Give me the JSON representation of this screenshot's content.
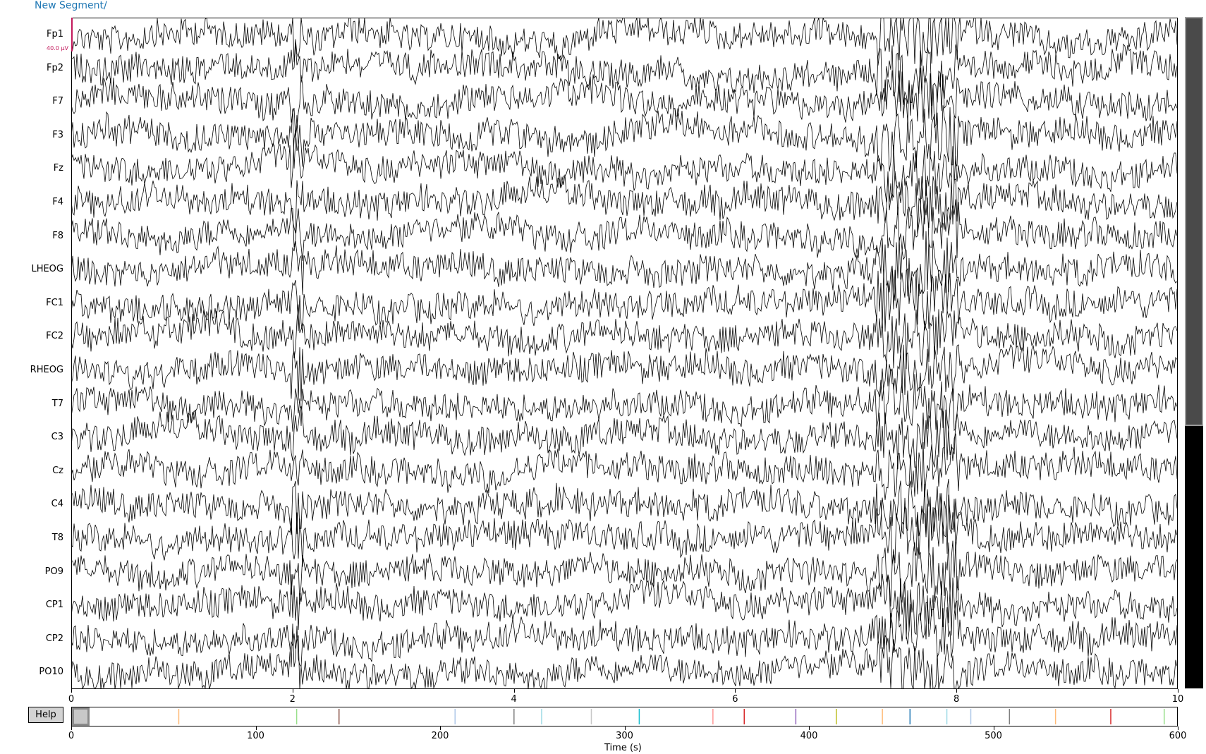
{
  "segment_label": "New Segment/",
  "channels": [
    "Fp1",
    "Fp2",
    "F7",
    "F3",
    "Fz",
    "F4",
    "F8",
    "LHEOG",
    "FC1",
    "FC2",
    "RHEOG",
    "T7",
    "C3",
    "Cz",
    "C4",
    "T8",
    "PO9",
    "CP1",
    "CP2",
    "PO10"
  ],
  "scale_label": "40.0 µV",
  "time_axis": {
    "ticks": [
      "0",
      "2",
      "4",
      "6",
      "8",
      "10"
    ],
    "range": [
      0,
      10
    ]
  },
  "overview_axis": {
    "ticks": [
      "0",
      "100",
      "200",
      "300",
      "400",
      "500",
      "600"
    ],
    "range": [
      0,
      600
    ],
    "window": [
      0,
      10
    ]
  },
  "xaxis_title": "Time (s)",
  "help_label": "Help",
  "event_markers": [
    {
      "t": 58,
      "color": "#ffbb78"
    },
    {
      "t": 122,
      "color": "#98df8a"
    },
    {
      "t": 145,
      "color": "#8c564b"
    },
    {
      "t": 208,
      "color": "#aec7e8"
    },
    {
      "t": 240,
      "color": "#7f7f7f"
    },
    {
      "t": 255,
      "color": "#9edae5"
    },
    {
      "t": 282,
      "color": "#c7c7c7"
    },
    {
      "t": 308,
      "color": "#17becf"
    },
    {
      "t": 348,
      "color": "#ff9896"
    },
    {
      "t": 365,
      "color": "#d62728"
    },
    {
      "t": 393,
      "color": "#9467bd"
    },
    {
      "t": 415,
      "color": "#bcbd22"
    },
    {
      "t": 440,
      "color": "#ffbb78"
    },
    {
      "t": 455,
      "color": "#1f77b4"
    },
    {
      "t": 475,
      "color": "#9edae5"
    },
    {
      "t": 488,
      "color": "#aec7e8"
    },
    {
      "t": 509,
      "color": "#7f7f7f"
    },
    {
      "t": 534,
      "color": "#ffbb78"
    },
    {
      "t": 564,
      "color": "#d62728"
    },
    {
      "t": 593,
      "color": "#98df8a"
    }
  ],
  "colors": {
    "trace": "#000000",
    "scale_bar": "#c2185b",
    "segment_text": "#1f77b4"
  }
}
